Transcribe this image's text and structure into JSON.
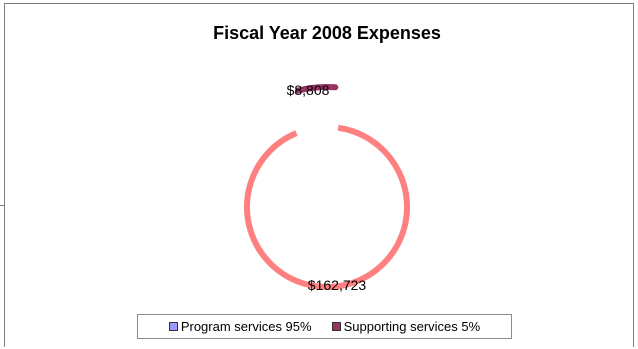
{
  "chart_data": {
    "type": "pie",
    "title": "Fiscal Year 2008 Expenses",
    "categories": [
      "Program services",
      "Supporting services"
    ],
    "values": [
      162723,
      8808
    ],
    "value_labels": [
      "$162,723",
      "$8,808"
    ],
    "legend_labels": [
      "Program services  95%",
      "Supporting services  5%"
    ],
    "legend_colors": [
      "#9999ff",
      "#993366"
    ],
    "ring_colors": [
      "#ff8080",
      "#993366"
    ],
    "legend_placement": "bottom"
  }
}
